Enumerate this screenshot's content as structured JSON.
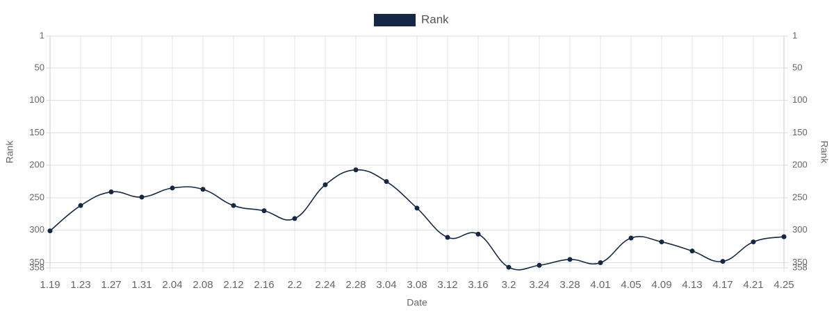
{
  "chart_data": {
    "type": "line",
    "x_label": "Date",
    "y_label": "Rank",
    "y2_label": "Rank",
    "categories": [
      "1.19",
      "1.23",
      "1.27",
      "1.31",
      "2.04",
      "2.08",
      "2.12",
      "2.16",
      "2.2",
      "2.24",
      "2.28",
      "3.04",
      "3.08",
      "3.12",
      "3.16",
      "3.2",
      "3.24",
      "3.28",
      "4.01",
      "4.05",
      "4.09",
      "4.13",
      "4.17",
      "4.21",
      "4.25"
    ],
    "series": [
      {
        "name": "Rank",
        "color": "#142846",
        "values": [
          301,
          262,
          241,
          249,
          235,
          237,
          262,
          270,
          282,
          230,
          207,
          225,
          266,
          311,
          306,
          357,
          354,
          345,
          350,
          312,
          318,
          332,
          348,
          318,
          310
        ]
      }
    ],
    "ylim": [
      1,
      358
    ],
    "yticks": [
      1,
      50,
      100,
      150,
      200,
      250,
      300,
      350,
      358
    ],
    "y2lim": [
      1,
      358
    ],
    "y2ticks": [
      1,
      50,
      100,
      150,
      200,
      250,
      300,
      350,
      358
    ],
    "y_reversed": true,
    "grid": true,
    "legend": "top"
  }
}
